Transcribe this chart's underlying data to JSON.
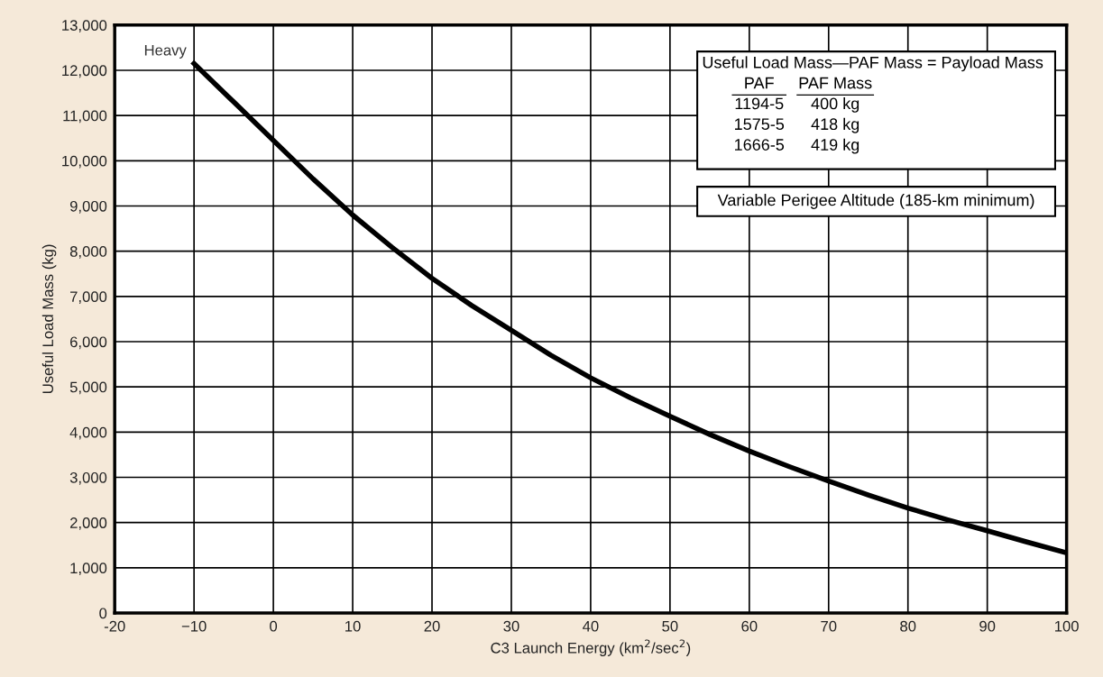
{
  "chart_data": {
    "type": "line",
    "xlabel": "C3 Launch Energy (km$^{2}$/sec$^{2}$)",
    "ylabel": "Useful Load Mass (kg)",
    "x": [
      -10,
      -5,
      0,
      5,
      10,
      15,
      20,
      25,
      30,
      35,
      40,
      45,
      50,
      55,
      60,
      65,
      70,
      75,
      80,
      85,
      90,
      95,
      100
    ],
    "series": [
      {
        "color": "#000000",
        "values": [
          12150,
          11300,
          10450,
          9600,
          8800,
          8080,
          7400,
          6800,
          6250,
          5700,
          5200,
          4760,
          4350,
          3950,
          3580,
          3240,
          2920,
          2610,
          2320,
          2060,
          1820,
          1570,
          1330
        ]
      }
    ],
    "xlim": [
      -20,
      100
    ],
    "xticks": [
      -20,
      {
        "value": -10,
        "label": "−10"
      },
      0,
      10,
      20,
      30,
      40,
      50,
      60,
      70,
      80,
      90,
      100
    ],
    "ylim": [
      0,
      13000
    ],
    "yticks": [
      0,
      {
        "value": 1000,
        "label": "1,000"
      },
      {
        "value": 2000,
        "label": "2,000"
      },
      {
        "value": 3000,
        "label": "3,000"
      },
      {
        "value": 4000,
        "label": "4,000"
      },
      {
        "value": 5000,
        "label": "5,000"
      },
      {
        "value": 6000,
        "label": "6,000"
      },
      {
        "value": 7000,
        "label": "7,000"
      },
      {
        "value": 8000,
        "label": "8,000"
      },
      {
        "value": 9000,
        "label": "9,000"
      },
      {
        "value": 10000,
        "label": "10,000"
      },
      {
        "value": 11000,
        "label": "11,000"
      },
      {
        "value": 12000,
        "label": "12,000"
      },
      {
        "value": 13000,
        "label": "13,000"
      }
    ],
    "grid": true,
    "marker": "none",
    "line_style": "solid",
    "annotations": [
      {
        "text": "Heavy",
        "x": -10,
        "y": 12150
      },
      "Useful Load Mass—PAF Mass = Payload Mass",
      "PAF",
      "PAF Mass",
      "1194-5",
      "400 kg",
      "1575-5",
      "418 kg",
      "1666-5",
      "419 kg",
      "Variable Perigee Altitude (185-km minimum)"
    ]
  }
}
